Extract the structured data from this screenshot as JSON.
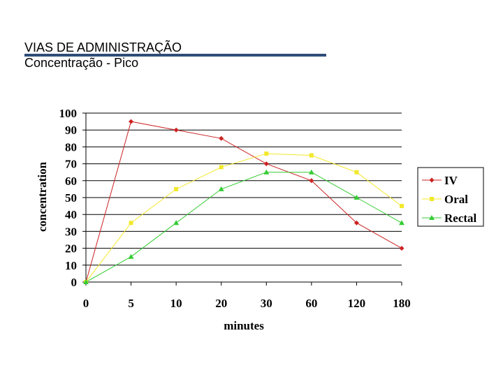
{
  "slide": {
    "title_line1": "VIAS DE ADMINISTRAÇÃO",
    "title_line2": "Concentração - Pico",
    "rule_color": "#2e4d7b"
  },
  "chart_data": {
    "type": "line",
    "title": "",
    "xlabel": "minutes",
    "ylabel": "concentration",
    "categories": [
      "0",
      "5",
      "10",
      "20",
      "30",
      "60",
      "120",
      "180"
    ],
    "ylim": [
      0,
      100
    ],
    "yticks": [
      0,
      10,
      20,
      30,
      40,
      50,
      60,
      70,
      80,
      90,
      100
    ],
    "grid": "horizontal",
    "legend_position": "right",
    "series": [
      {
        "name": "IV",
        "color": "#cc2222",
        "marker": "diamond",
        "values": [
          0,
          95,
          90,
          85,
          70,
          60,
          35,
          20
        ]
      },
      {
        "name": "Oral",
        "color": "#f2e82a",
        "marker": "square",
        "values": [
          0,
          35,
          55,
          68,
          76,
          75,
          65,
          45
        ]
      },
      {
        "name": "Rectal",
        "color": "#33cc33",
        "marker": "triangle",
        "values": [
          0,
          15,
          35,
          55,
          65,
          65,
          50,
          35
        ]
      }
    ]
  }
}
